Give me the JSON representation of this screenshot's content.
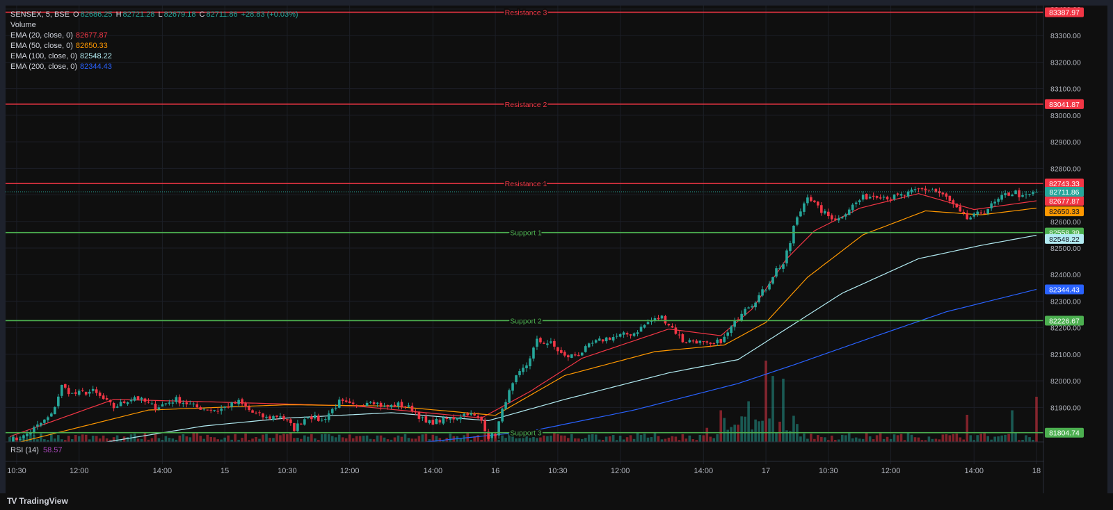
{
  "header": {
    "symbol": "SENSEX, 5, BSE",
    "open_label": "O",
    "open": "82686.25",
    "high_label": "H",
    "high": "82721.28",
    "low_label": "L",
    "low": "82679.18",
    "close_label": "C",
    "close": "82711.86",
    "change": "+28.83 (+0.03%)",
    "volume_label": "Volume"
  },
  "indicators": [
    {
      "label": "EMA (20, close, 0)",
      "value": "82677.87",
      "color": "#f23645"
    },
    {
      "label": "EMA (50, close, 0)",
      "value": "82650.33",
      "color": "#ff9800"
    },
    {
      "label": "EMA (100, close, 0)",
      "value": "82548.22",
      "color": "#b2ebf2"
    },
    {
      "label": "EMA (200, close, 0)",
      "value": "82344.43",
      "color": "#2962ff"
    }
  ],
  "rsi": {
    "label": "RSI (14)",
    "value": "58.57",
    "color": "#ab47bc"
  },
  "brand": {
    "name": "TradingView",
    "logo": "TV"
  },
  "colors": {
    "up": "#26a69a",
    "down": "#f23645",
    "resistance": "#f23645",
    "support": "#4caf50",
    "background": "#0f0f0f"
  },
  "chart_data": {
    "type": "candlestick",
    "ylim": [
      81770,
      83400
    ],
    "y_ticks": [
      {
        "value": 81900,
        "label": "81900.00"
      },
      {
        "value": 82000,
        "label": "82000.00"
      },
      {
        "value": 82100,
        "label": "82100.00"
      },
      {
        "value": 82200,
        "label": "82200.00"
      },
      {
        "value": 82300,
        "label": "82300.00"
      },
      {
        "value": 82400,
        "label": "82400.00"
      },
      {
        "value": 82500,
        "label": "82500.00"
      },
      {
        "value": 82600,
        "label": "82600.00"
      },
      {
        "value": 82700,
        "label": "82700.00"
      },
      {
        "value": 82800,
        "label": "82800.00"
      },
      {
        "value": 82900,
        "label": "82900.00"
      },
      {
        "value": 83000,
        "label": "83000.00"
      },
      {
        "value": 83100,
        "label": "83100.00"
      },
      {
        "value": 83200,
        "label": "83200.00"
      },
      {
        "value": 83300,
        "label": "83300.00"
      },
      {
        "value": 83400,
        "label": "83400.00"
      }
    ],
    "x_ticks": [
      {
        "bar": 2,
        "label": "10:30"
      },
      {
        "bar": 20,
        "label": "12:00"
      },
      {
        "bar": 44,
        "label": "14:00"
      },
      {
        "bar": 62,
        "label": "15"
      },
      {
        "bar": 80,
        "label": "10:30"
      },
      {
        "bar": 98,
        "label": "12:00"
      },
      {
        "bar": 122,
        "label": "14:00"
      },
      {
        "bar": 140,
        "label": "16"
      },
      {
        "bar": 158,
        "label": "10:30"
      },
      {
        "bar": 176,
        "label": "12:00"
      },
      {
        "bar": 200,
        "label": "14:00"
      },
      {
        "bar": 218,
        "label": "17"
      },
      {
        "bar": 236,
        "label": "10:30"
      },
      {
        "bar": 254,
        "label": "12:00"
      },
      {
        "bar": 278,
        "label": "14:00"
      },
      {
        "bar": 296,
        "label": "18"
      }
    ],
    "levels": [
      {
        "name": "Resistance 3",
        "value": 83387.97,
        "label": "83387.97",
        "kind": "resistance"
      },
      {
        "name": "Resistance 2",
        "value": 83041.87,
        "label": "83041.87",
        "kind": "resistance"
      },
      {
        "name": "Resistance 1",
        "value": 82743.33,
        "label": "82743.33",
        "kind": "resistance"
      },
      {
        "name": "Support 1",
        "value": 82558.39,
        "label": "82558.39",
        "kind": "support"
      },
      {
        "name": "Support 2",
        "value": 82226.67,
        "label": "82226.67",
        "kind": "support"
      },
      {
        "name": "Support 3",
        "value": 81804.74,
        "label": "81804.74",
        "kind": "support"
      }
    ],
    "last_price": {
      "value": 82711.86,
      "label": "82711.86"
    },
    "ema_labels": [
      {
        "value": 82677.87,
        "label": "82677.87",
        "color": "#f23645"
      },
      {
        "value": 82650.33,
        "label": "82650.33",
        "color": "#ff9800"
      },
      {
        "value": 82548.22,
        "label": "82548.22",
        "color": "#b2ebf2"
      },
      {
        "value": 82344.43,
        "label": "82344.43",
        "color": "#2962ff"
      }
    ],
    "close_anchors": [
      [
        0,
        81775
      ],
      [
        4,
        81790
      ],
      [
        8,
        81830
      ],
      [
        12,
        81870
      ],
      [
        15,
        81980
      ],
      [
        18,
        81950
      ],
      [
        24,
        81960
      ],
      [
        30,
        81900
      ],
      [
        36,
        81940
      ],
      [
        42,
        81900
      ],
      [
        48,
        81930
      ],
      [
        54,
        81900
      ],
      [
        60,
        81890
      ],
      [
        66,
        81920
      ],
      [
        70,
        81880
      ],
      [
        74,
        81860
      ],
      [
        78,
        81870
      ],
      [
        82,
        81820
      ],
      [
        86,
        81870
      ],
      [
        90,
        81850
      ],
      [
        95,
        81920
      ],
      [
        100,
        81900
      ],
      [
        104,
        81930
      ],
      [
        108,
        81900
      ],
      [
        112,
        81910
      ],
      [
        116,
        81895
      ],
      [
        120,
        81840
      ],
      [
        124,
        81850
      ],
      [
        128,
        81860
      ],
      [
        132,
        81880
      ],
      [
        136,
        81850
      ],
      [
        138,
        81790
      ],
      [
        140,
        81800
      ],
      [
        143,
        81930
      ],
      [
        146,
        82010
      ],
      [
        149,
        82060
      ],
      [
        152,
        82150
      ],
      [
        156,
        82140
      ],
      [
        160,
        82090
      ],
      [
        164,
        82100
      ],
      [
        168,
        82140
      ],
      [
        172,
        82160
      ],
      [
        176,
        82170
      ],
      [
        180,
        82180
      ],
      [
        184,
        82220
      ],
      [
        188,
        82240
      ],
      [
        191,
        82200
      ],
      [
        194,
        82150
      ],
      [
        198,
        82150
      ],
      [
        202,
        82130
      ],
      [
        206,
        82160
      ],
      [
        208,
        82200
      ],
      [
        212,
        82280
      ],
      [
        214,
        82290
      ],
      [
        218,
        82350
      ],
      [
        221,
        82420
      ],
      [
        223,
        82440
      ],
      [
        225,
        82520
      ],
      [
        226,
        82580
      ],
      [
        228,
        82640
      ],
      [
        230,
        82700
      ],
      [
        233,
        82650
      ],
      [
        236,
        82620
      ],
      [
        239,
        82610
      ],
      [
        242,
        82650
      ],
      [
        246,
        82690
      ],
      [
        250,
        82700
      ],
      [
        254,
        82690
      ],
      [
        258,
        82700
      ],
      [
        262,
        82720
      ],
      [
        266,
        82720
      ],
      [
        270,
        82690
      ],
      [
        272,
        82660
      ],
      [
        274,
        82630
      ],
      [
        276,
        82610
      ],
      [
        278,
        82620
      ],
      [
        281,
        82640
      ],
      [
        284,
        82670
      ],
      [
        287,
        82700
      ],
      [
        290,
        82710
      ],
      [
        292,
        82690
      ],
      [
        296,
        82711.86
      ]
    ],
    "ema_anchors": {
      "ema20": [
        [
          0,
          81790
        ],
        [
          30,
          81930
        ],
        [
          60,
          81920
        ],
        [
          100,
          81905
        ],
        [
          136,
          81860
        ],
        [
          150,
          81960
        ],
        [
          165,
          82085
        ],
        [
          190,
          82195
        ],
        [
          205,
          82170
        ],
        [
          214,
          82270
        ],
        [
          224,
          82460
        ],
        [
          232,
          82565
        ],
        [
          245,
          82650
        ],
        [
          262,
          82705
        ],
        [
          278,
          82645
        ],
        [
          296,
          82677.87
        ]
      ],
      "ema50": [
        [
          0,
          81760
        ],
        [
          40,
          81890
        ],
        [
          80,
          81910
        ],
        [
          110,
          81905
        ],
        [
          140,
          81870
        ],
        [
          160,
          82020
        ],
        [
          186,
          82110
        ],
        [
          206,
          82135
        ],
        [
          218,
          82220
        ],
        [
          230,
          82390
        ],
        [
          246,
          82550
        ],
        [
          264,
          82640
        ],
        [
          280,
          82625
        ],
        [
          296,
          82650.33
        ]
      ],
      "ema100": [
        [
          28,
          81770
        ],
        [
          56,
          81830
        ],
        [
          80,
          81860
        ],
        [
          110,
          81880
        ],
        [
          138,
          81850
        ],
        [
          160,
          81930
        ],
        [
          190,
          82030
        ],
        [
          210,
          82080
        ],
        [
          222,
          82180
        ],
        [
          240,
          82330
        ],
        [
          262,
          82460
        ],
        [
          280,
          82510
        ],
        [
          296,
          82548.22
        ]
      ],
      "ema200": [
        [
          120,
          81770
        ],
        [
          150,
          81810
        ],
        [
          180,
          81890
        ],
        [
          210,
          81990
        ],
        [
          226,
          82060
        ],
        [
          250,
          82170
        ],
        [
          270,
          82260
        ],
        [
          296,
          82344.43
        ]
      ]
    },
    "volume_spikes": [
      [
        218,
        0.9
      ],
      [
        220,
        0.73
      ],
      [
        223,
        0.7
      ],
      [
        205,
        0.35
      ],
      [
        213,
        0.45
      ],
      [
        296,
        0.5
      ],
      [
        289,
        0.35
      ],
      [
        276,
        0.3
      ]
    ],
    "rsi_value": 58.57
  }
}
